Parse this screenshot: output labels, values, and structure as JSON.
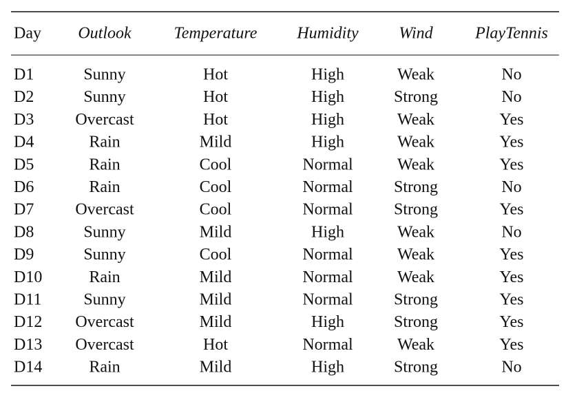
{
  "table": {
    "header": [
      "Day",
      "Outlook",
      "Temperature",
      "Humidity",
      "Wind",
      "PlayTennis"
    ],
    "rows": [
      [
        "D1",
        "Sunny",
        "Hot",
        "High",
        "Weak",
        "No"
      ],
      [
        "D2",
        "Sunny",
        "Hot",
        "High",
        "Strong",
        "No"
      ],
      [
        "D3",
        "Overcast",
        "Hot",
        "High",
        "Weak",
        "Yes"
      ],
      [
        "D4",
        "Rain",
        "Mild",
        "High",
        "Weak",
        "Yes"
      ],
      [
        "D5",
        "Rain",
        "Cool",
        "Normal",
        "Weak",
        "Yes"
      ],
      [
        "D6",
        "Rain",
        "Cool",
        "Normal",
        "Strong",
        "No"
      ],
      [
        "D7",
        "Overcast",
        "Cool",
        "Normal",
        "Strong",
        "Yes"
      ],
      [
        "D8",
        "Sunny",
        "Mild",
        "High",
        "Weak",
        "No"
      ],
      [
        "D9",
        "Sunny",
        "Cool",
        "Normal",
        "Weak",
        "Yes"
      ],
      [
        "D10",
        "Rain",
        "Mild",
        "Normal",
        "Weak",
        "Yes"
      ],
      [
        "D11",
        "Sunny",
        "Mild",
        "Normal",
        "Strong",
        "Yes"
      ],
      [
        "D12",
        "Overcast",
        "Mild",
        "High",
        "Strong",
        "Yes"
      ],
      [
        "D13",
        "Overcast",
        "Hot",
        "Normal",
        "Weak",
        "Yes"
      ],
      [
        "D14",
        "Rain",
        "Mild",
        "High",
        "Strong",
        "No"
      ]
    ]
  }
}
